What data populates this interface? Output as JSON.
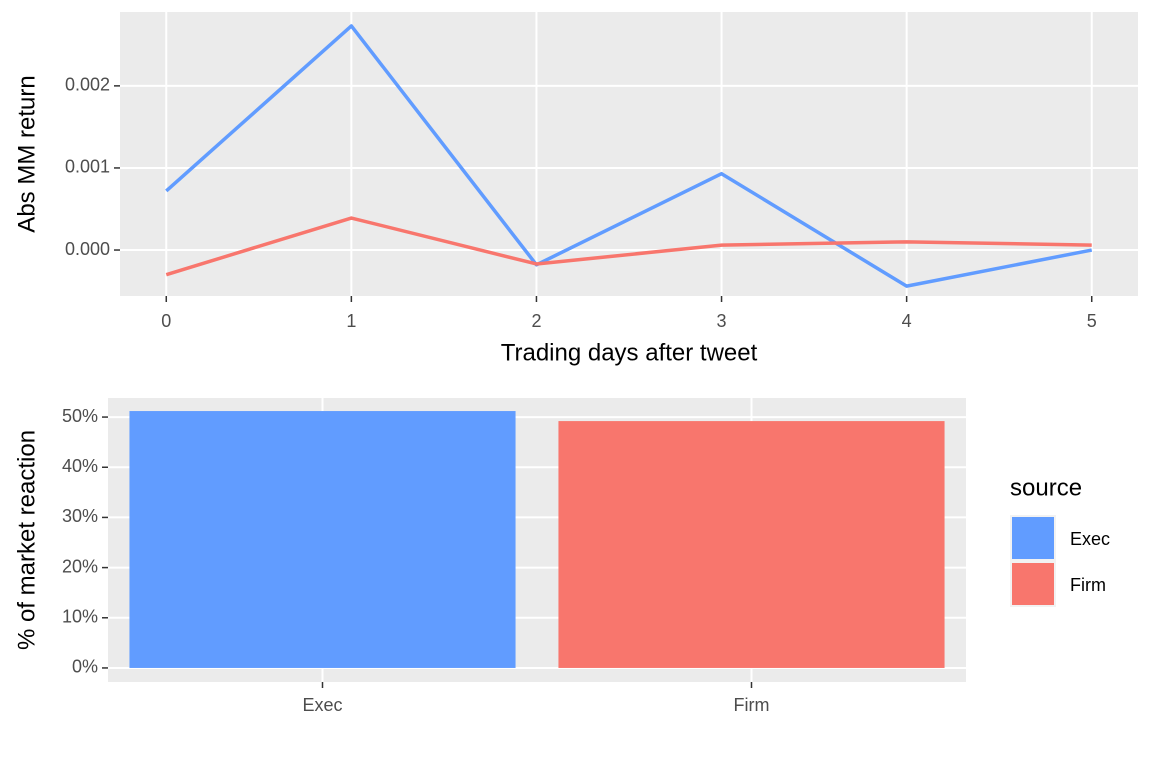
{
  "chart_data": [
    {
      "type": "line",
      "x": [
        0,
        1,
        2,
        3,
        4,
        5
      ],
      "xlim": [
        -0.25,
        5.25
      ],
      "xticks": [
        0,
        1,
        2,
        3,
        4,
        5
      ],
      "ylim": [
        -0.00056,
        0.0029
      ],
      "yticks": [
        {
          "value": 0,
          "label": "0.000"
        },
        {
          "value": 0.001,
          "label": "0.001"
        },
        {
          "value": 0.002,
          "label": "0.002"
        }
      ],
      "xlabel": "Trading days after tweet",
      "ylabel": "Abs MM return",
      "grid": true,
      "series": [
        {
          "name": "Exec",
          "color": "#619cff",
          "values": [
            0.00072,
            0.00273,
            -0.00018,
            0.00093,
            -0.00044,
            0.0
          ]
        },
        {
          "name": "Firm",
          "color": "#f8766d",
          "values": [
            -0.0003,
            0.00039,
            -0.00017,
            6e-05,
            0.0001,
            6e-05
          ]
        }
      ]
    },
    {
      "type": "bar",
      "categories": [
        "Exec",
        "Firm"
      ],
      "values": [
        51.2,
        49.2
      ],
      "colors": [
        "#619cff",
        "#f8766d"
      ],
      "ylim": [
        -2.8,
        53.8
      ],
      "yticks": [
        {
          "value": 0,
          "label": "0%"
        },
        {
          "value": 10,
          "label": "10%"
        },
        {
          "value": 20,
          "label": "20%"
        },
        {
          "value": 30,
          "label": "30%"
        },
        {
          "value": 40,
          "label": "40%"
        },
        {
          "value": 50,
          "label": "50%"
        }
      ],
      "ylabel": "% of market reaction",
      "grid": true,
      "legend_title": "source",
      "legend": "right"
    }
  ]
}
